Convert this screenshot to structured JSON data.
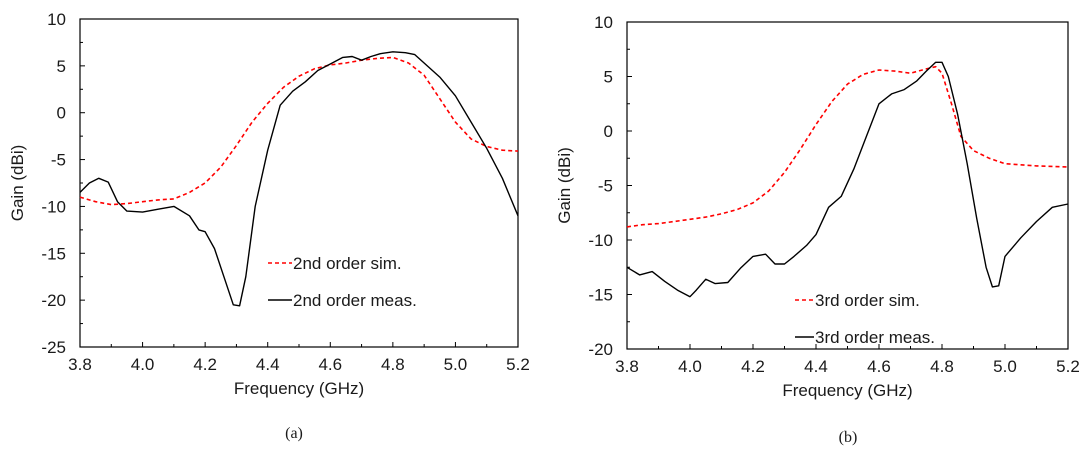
{
  "chart_data": [
    {
      "type": "line",
      "caption": "(a)",
      "xlabel": "Frequency (GHz)",
      "ylabel": "Gain (dBi)",
      "xlim": [
        3.8,
        5.2
      ],
      "ylim": [
        -25,
        10
      ],
      "xticks": [
        "3.8",
        "4.0",
        "4.2",
        "4.4",
        "4.6",
        "4.8",
        "5.0",
        "5.2"
      ],
      "yticks": [
        "10",
        "5",
        "0",
        "-5",
        "-10",
        "-15",
        "-20",
        "-25"
      ],
      "grid": false,
      "legend_position": "lower-right",
      "series": [
        {
          "name": "2nd order sim.",
          "color": "#ff0000",
          "style": "dashed",
          "x": [
            3.8,
            3.85,
            3.9,
            3.95,
            4.0,
            4.05,
            4.1,
            4.15,
            4.2,
            4.25,
            4.3,
            4.35,
            4.4,
            4.45,
            4.5,
            4.55,
            4.6,
            4.65,
            4.7,
            4.75,
            4.8,
            4.85,
            4.9,
            4.95,
            5.0,
            5.05,
            5.1,
            5.15,
            5.2
          ],
          "y": [
            -9.0,
            -9.5,
            -9.8,
            -9.7,
            -9.5,
            -9.3,
            -9.2,
            -8.5,
            -7.5,
            -5.8,
            -3.5,
            -1.0,
            1.0,
            2.7,
            3.9,
            4.7,
            5.1,
            5.3,
            5.6,
            5.8,
            5.9,
            5.3,
            4.0,
            1.5,
            -1.0,
            -2.8,
            -3.6,
            -4.0,
            -4.1
          ]
        },
        {
          "name": "2nd order meas.",
          "color": "#000000",
          "style": "solid",
          "x": [
            3.8,
            3.83,
            3.86,
            3.89,
            3.92,
            3.95,
            4.0,
            4.05,
            4.1,
            4.15,
            4.18,
            4.2,
            4.23,
            4.26,
            4.29,
            4.31,
            4.33,
            4.36,
            4.4,
            4.44,
            4.48,
            4.52,
            4.56,
            4.6,
            4.64,
            4.67,
            4.7,
            4.73,
            4.76,
            4.8,
            4.84,
            4.87,
            4.9,
            4.95,
            5.0,
            5.05,
            5.1,
            5.15,
            5.2
          ],
          "y": [
            -8.5,
            -7.5,
            -7.0,
            -7.4,
            -9.5,
            -10.5,
            -10.6,
            -10.3,
            -10.0,
            -11.0,
            -12.5,
            -12.7,
            -14.5,
            -17.5,
            -20.5,
            -20.6,
            -17.5,
            -10.0,
            -4.0,
            0.8,
            2.3,
            3.3,
            4.5,
            5.2,
            5.9,
            6.0,
            5.6,
            6.0,
            6.3,
            6.5,
            6.4,
            6.2,
            5.3,
            3.8,
            1.8,
            -1.0,
            -3.8,
            -7.0,
            -11.0
          ]
        }
      ]
    },
    {
      "type": "line",
      "caption": "(b)",
      "xlabel": "Frequency (GHz)",
      "ylabel": "Gain (dBi)",
      "xlim": [
        3.8,
        5.2
      ],
      "ylim": [
        -20,
        10
      ],
      "xticks": [
        "3.8",
        "4.0",
        "4.2",
        "4.4",
        "4.6",
        "4.8",
        "5.0",
        "5.2"
      ],
      "yticks": [
        "10",
        "5",
        "0",
        "-5",
        "-10",
        "-15",
        "-20"
      ],
      "grid": false,
      "legend_position": "lower-center",
      "series": [
        {
          "name": "3rd order sim.",
          "color": "#ff0000",
          "style": "dashed",
          "x": [
            3.8,
            3.85,
            3.9,
            3.95,
            4.0,
            4.05,
            4.1,
            4.15,
            4.2,
            4.25,
            4.3,
            4.35,
            4.4,
            4.45,
            4.5,
            4.55,
            4.6,
            4.65,
            4.7,
            4.75,
            4.78,
            4.8,
            4.83,
            4.86,
            4.9,
            4.95,
            5.0,
            5.1,
            5.2
          ],
          "y": [
            -8.8,
            -8.6,
            -8.5,
            -8.3,
            -8.1,
            -7.9,
            -7.6,
            -7.2,
            -6.6,
            -5.5,
            -3.8,
            -1.7,
            0.6,
            2.7,
            4.3,
            5.2,
            5.6,
            5.5,
            5.3,
            5.7,
            5.9,
            5.3,
            2.5,
            -0.5,
            -1.8,
            -2.5,
            -3.0,
            -3.2,
            -3.3
          ]
        },
        {
          "name": "3rd order meas.",
          "color": "#000000",
          "style": "solid",
          "x": [
            3.8,
            3.84,
            3.88,
            3.92,
            3.96,
            4.0,
            4.02,
            4.05,
            4.08,
            4.12,
            4.16,
            4.2,
            4.24,
            4.27,
            4.3,
            4.33,
            4.37,
            4.4,
            4.44,
            4.48,
            4.52,
            4.56,
            4.6,
            4.64,
            4.68,
            4.72,
            4.75,
            4.78,
            4.8,
            4.82,
            4.85,
            4.88,
            4.91,
            4.94,
            4.96,
            4.98,
            5.0,
            5.05,
            5.1,
            5.15,
            5.2
          ],
          "y": [
            -12.5,
            -13.2,
            -12.9,
            -13.8,
            -14.6,
            -15.2,
            -14.6,
            -13.6,
            -14.0,
            -13.9,
            -12.6,
            -11.5,
            -11.3,
            -12.2,
            -12.2,
            -11.5,
            -10.5,
            -9.5,
            -7.0,
            -6.0,
            -3.5,
            -0.5,
            2.5,
            3.4,
            3.8,
            4.6,
            5.5,
            6.3,
            6.3,
            5.0,
            1.5,
            -3.0,
            -8.0,
            -12.5,
            -14.3,
            -14.2,
            -11.5,
            -9.8,
            -8.3,
            -7.0,
            -6.7
          ]
        }
      ]
    }
  ]
}
